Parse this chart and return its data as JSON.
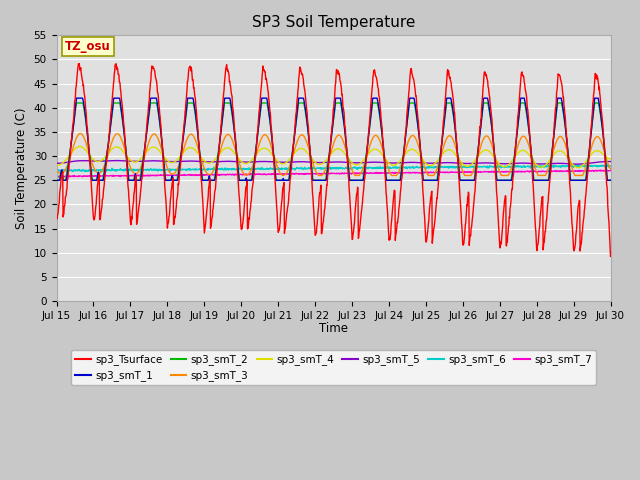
{
  "title": "SP3 Soil Temperature",
  "xlabel": "Time",
  "ylabel": "Soil Temperature (C)",
  "xlim": [
    0,
    15
  ],
  "ylim": [
    0,
    55
  ],
  "yticks": [
    0,
    5,
    10,
    15,
    20,
    25,
    30,
    35,
    40,
    45,
    50,
    55
  ],
  "xtick_labels": [
    "Jul 15",
    "Jul 16",
    "Jul 17",
    "Jul 18",
    "Jul 19",
    "Jul 20",
    "Jul 21",
    "Jul 22",
    "Jul 23",
    "Jul 24",
    "Jul 25",
    "Jul 26",
    "Jul 27",
    "Jul 28",
    "Jul 29",
    "Jul 30"
  ],
  "annotation": "TZ_osu",
  "fig_bg": "#c8c8c8",
  "plot_bg": "#e0e0e0",
  "series_colors": {
    "sp3_Tsurface": "#ff0000",
    "sp3_smT_1": "#0000cc",
    "sp3_smT_2": "#00bb00",
    "sp3_smT_3": "#ff8800",
    "sp3_smT_4": "#dddd00",
    "sp3_smT_5": "#8800cc",
    "sp3_smT_6": "#00cccc",
    "sp3_smT_7": "#ff00cc"
  }
}
